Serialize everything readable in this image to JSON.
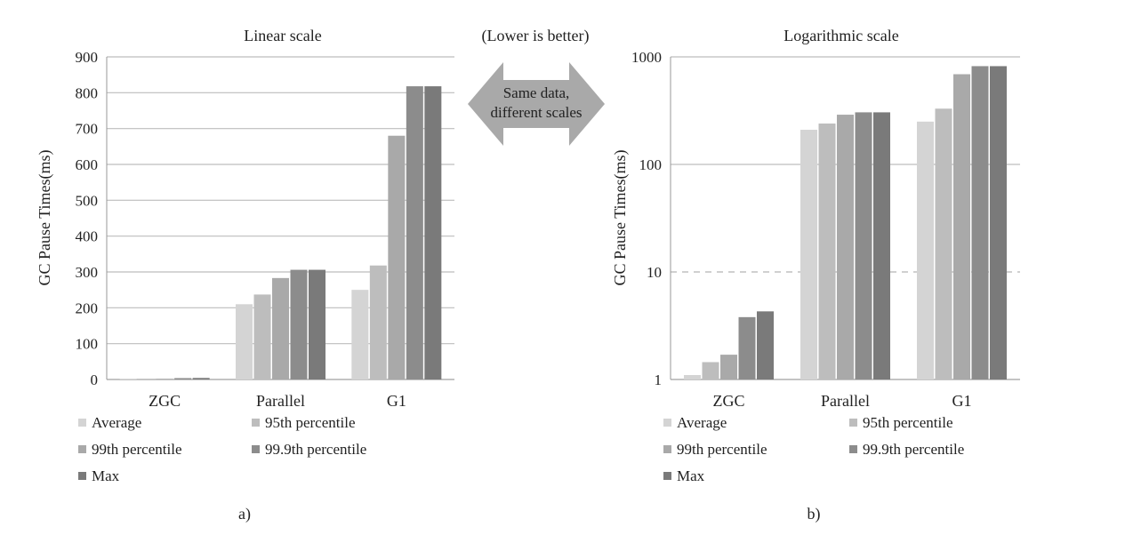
{
  "center": {
    "note": "(Lower is better)",
    "arrow_line1": "Same data,",
    "arrow_line2": "different scales"
  },
  "legend_labels": [
    "Average",
    "95th percentile",
    "99th percentile",
    "99.9th percentile",
    "Max"
  ],
  "colors": [
    "#d4d4d4",
    "#bdbdbd",
    "#a9a9a9",
    "#8c8c8c",
    "#7a7a7a"
  ],
  "chart_data": [
    {
      "type": "bar",
      "title": "Linear scale",
      "caption": "a)",
      "ylabel": "GC Pause Times(ms)",
      "xlabel": "",
      "yscale": "linear",
      "ylim": [
        0,
        900
      ],
      "yticks": [
        "0",
        "100",
        "200",
        "300",
        "400",
        "500",
        "600",
        "700",
        "800",
        "900"
      ],
      "grid": true,
      "legend_position": "bottom",
      "categories": [
        "ZGC",
        "Parallel",
        "G1"
      ],
      "series": [
        {
          "name": "Average",
          "values": [
            1.1,
            210,
            250
          ]
        },
        {
          "name": "95th percentile",
          "values": [
            1.4,
            237,
            318
          ]
        },
        {
          "name": "99th percentile",
          "values": [
            1.7,
            283,
            680
          ]
        },
        {
          "name": "99.9th percentile",
          "values": [
            3.8,
            306,
            818
          ]
        },
        {
          "name": "Max",
          "values": [
            4.3,
            306,
            818
          ]
        }
      ]
    },
    {
      "type": "bar",
      "title": "Logarithmic scale",
      "caption": "b)",
      "ylabel": "GC Pause Times(ms)",
      "xlabel": "",
      "yscale": "log",
      "ylim": [
        1,
        1000
      ],
      "yticks": [
        "1",
        "10",
        "100",
        "1000"
      ],
      "grid": true,
      "legend_position": "bottom",
      "categories": [
        "ZGC",
        "Parallel",
        "G1"
      ],
      "series": [
        {
          "name": "Average",
          "values": [
            1.1,
            210,
            250
          ]
        },
        {
          "name": "95th percentile",
          "values": [
            1.45,
            240,
            330
          ]
        },
        {
          "name": "99th percentile",
          "values": [
            1.7,
            290,
            690
          ]
        },
        {
          "name": "99.9th percentile",
          "values": [
            3.8,
            305,
            820
          ]
        },
        {
          "name": "Max",
          "values": [
            4.3,
            305,
            820
          ]
        }
      ]
    }
  ]
}
